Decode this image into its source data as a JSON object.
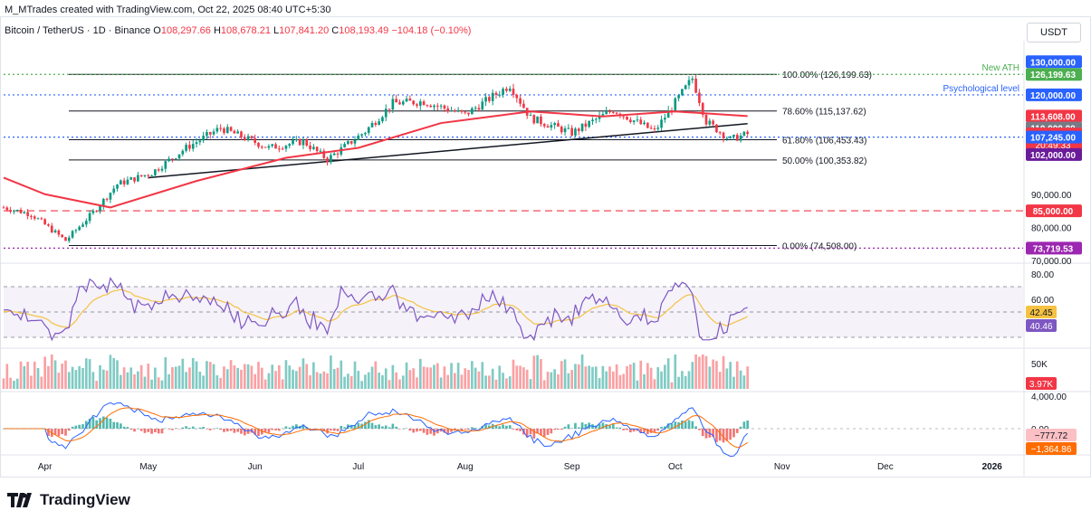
{
  "header": {
    "text": "M_MTrades created with TradingView.com, Oct 22, 2025 08:40 UTC+5:30"
  },
  "symbol": {
    "name": "Bitcoin / TetherUS · 1D · Binance",
    "open_label": "O",
    "open": "108,297.66",
    "high_label": "H",
    "high": "108,678.21",
    "low_label": "L",
    "low": "107,841.20",
    "close_label": "C",
    "close": "108,193.49",
    "change": "−104.18 (−0.10%)"
  },
  "currency": "USDT",
  "logo": {
    "text": "TradingView"
  },
  "colors": {
    "up": "#089981",
    "down": "#f23645",
    "ma": "#f23645",
    "blue_level": "#2962ff",
    "green_level": "#4caf50",
    "purple": "#9c27b0",
    "rsi": "#7e57c2",
    "rsi_ma": "#f5c242",
    "macd": "#2962ff",
    "signal": "#ff6d00"
  },
  "chart_data": [
    {
      "type": "candlestick",
      "title": "",
      "x_labels": [
        "Apr",
        "May",
        "Jun",
        "Jul",
        "Aug",
        "Sep",
        "Oct",
        "Nov",
        "Dec",
        "2026"
      ],
      "y_ticks": [
        "90,000.00",
        "80,000.00",
        "70,000.00"
      ],
      "y_range": [
        70000,
        135000
      ],
      "grid": false,
      "price_path": [
        [
          "2025-03-20",
          86000
        ],
        [
          "2025-03-28",
          84000
        ],
        [
          "2025-04-07",
          76000
        ],
        [
          "2025-04-15",
          84500
        ],
        [
          "2025-04-22",
          93000
        ],
        [
          "2025-05-02",
          96500
        ],
        [
          "2025-05-12",
          104000
        ],
        [
          "2025-05-22",
          110000
        ],
        [
          "2025-06-05",
          104000
        ],
        [
          "2025-06-15",
          106000
        ],
        [
          "2025-06-22",
          100500
        ],
        [
          "2025-07-03",
          109000
        ],
        [
          "2025-07-11",
          117500
        ],
        [
          "2025-07-20",
          118000
        ],
        [
          "2025-08-01",
          114000
        ],
        [
          "2025-08-14",
          123000
        ],
        [
          "2025-08-20",
          113000
        ],
        [
          "2025-09-01",
          108500
        ],
        [
          "2025-09-13",
          115500
        ],
        [
          "2025-09-25",
          109000
        ],
        [
          "2025-10-06",
          125000
        ],
        [
          "2025-10-10",
          112000
        ],
        [
          "2025-10-17",
          106500
        ],
        [
          "2025-10-22",
          108193.49
        ]
      ],
      "moving_average": [
        [
          "2025-03-20",
          95000
        ],
        [
          "2025-04-01",
          90000
        ],
        [
          "2025-04-20",
          86000
        ],
        [
          "2025-05-15",
          94000
        ],
        [
          "2025-06-10",
          101000
        ],
        [
          "2025-07-01",
          104000
        ],
        [
          "2025-07-25",
          111500
        ],
        [
          "2025-08-20",
          115000
        ],
        [
          "2025-09-10",
          113500
        ],
        [
          "2025-10-01",
          115000
        ],
        [
          "2025-10-22",
          113608
        ]
      ],
      "trendline": {
        "from": [
          "2025-05-01",
          95000
        ],
        "to": [
          "2025-10-22",
          111300
        ]
      },
      "fibonacci": [
        {
          "label": "100.00% (126,199.63)",
          "value": 126199.63
        },
        {
          "label": "78.60% (115,137.62)",
          "value": 115137.62
        },
        {
          "label": "61.80% (106,453.43)",
          "value": 106453.43
        },
        {
          "label": "50.00% (100,353.82)",
          "value": 100353.82
        },
        {
          "label": "0.00% (74,508.00)",
          "value": 74508
        }
      ],
      "levels": [
        {
          "label": "New ATH",
          "value": 126199.63,
          "price_tag": "126,199.63",
          "color": "#4caf50"
        },
        {
          "label": "Psychological level",
          "value": 120000,
          "price_tag": "120,000.00",
          "color": "#2962ff"
        },
        {
          "label": "",
          "value": 85000,
          "price_tag": "85,000.00",
          "color": "#f23645"
        },
        {
          "label": "",
          "value": 73719.53,
          "price_tag": "73,719.53",
          "color": "#9c27b0"
        },
        {
          "label": "",
          "value": 107245,
          "price_tag": "107,245.00",
          "color": "#2962ff"
        }
      ],
      "price_tags": [
        {
          "text": "130,000.00",
          "value": 130000,
          "color": "#2962ff"
        },
        {
          "text": "113,608.00",
          "value": 113608,
          "color": "#f23645"
        },
        {
          "text": "110,000.00",
          "value": 110000,
          "color": "#787b86"
        },
        {
          "text": "108,193.49",
          "value": 108193.49,
          "color": "#f23645",
          "sub": "20:49:33"
        },
        {
          "text": "102,000.00",
          "value": 102000,
          "color": "#6a1b9a"
        }
      ]
    },
    {
      "type": "line",
      "title": "",
      "y_ticks": [
        "80.00",
        "60.00"
      ],
      "y_range": [
        25,
        85
      ],
      "rsi_value": "40.46",
      "rsi_ma_value": "42.45",
      "band": [
        30,
        70
      ]
    },
    {
      "type": "bar",
      "title": "",
      "y_ticks": [
        "50K"
      ],
      "last_value": "3.97K"
    },
    {
      "type": "line",
      "title": "",
      "y_ticks": [
        "4,000.00",
        "0.00"
      ],
      "macd_value": "−777.72",
      "signal_value": "−1,364.86"
    }
  ]
}
